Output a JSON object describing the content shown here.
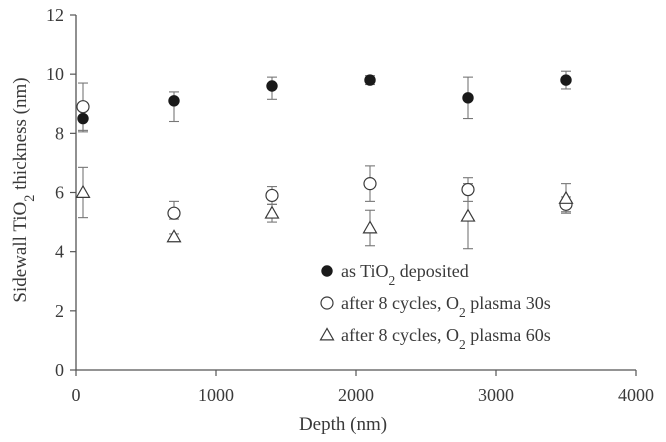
{
  "chart_data": {
    "type": "scatter",
    "title": "",
    "xlabel": "Depth (nm)",
    "ylabel_parts": [
      "Sidewall  TiO",
      "2",
      " thickness (nm)"
    ],
    "xlim": [
      0,
      4000
    ],
    "ylim": [
      0,
      12
    ],
    "x_ticks": [
      0,
      1000,
      2000,
      3000,
      4000
    ],
    "y_ticks": [
      0,
      2,
      4,
      6,
      8,
      10,
      12
    ],
    "grid": false,
    "legend_position": "bottom-right",
    "colors": {
      "axis": "#555555",
      "ink": "#3a3a3a",
      "filled": "#1a1a1a",
      "open": "#ffffff",
      "errorbar": "#777777"
    },
    "series": [
      {
        "name_parts": [
          "as TiO",
          "2",
          " deposited"
        ],
        "marker": "filled-circle",
        "points": [
          {
            "x": 50,
            "y": 8.5,
            "err_lo": 0.45,
            "err_hi": 0.45
          },
          {
            "x": 700,
            "y": 9.1,
            "err_lo": 0.7,
            "err_hi": 0.3
          },
          {
            "x": 1400,
            "y": 9.6,
            "err_lo": 0.45,
            "err_hi": 0.3
          },
          {
            "x": 2100,
            "y": 9.8,
            "err_lo": 0.15,
            "err_hi": 0.15
          },
          {
            "x": 2800,
            "y": 9.2,
            "err_lo": 0.7,
            "err_hi": 0.7
          },
          {
            "x": 3500,
            "y": 9.8,
            "err_lo": 0.3,
            "err_hi": 0.3
          }
        ]
      },
      {
        "name_parts": [
          "after 8 cycles, O",
          "2",
          "  plasma 30s"
        ],
        "marker": "open-circle",
        "points": [
          {
            "x": 50,
            "y": 8.9,
            "err_lo": 0.8,
            "err_hi": 0.8
          },
          {
            "x": 700,
            "y": 5.3,
            "err_lo": 0.2,
            "err_hi": 0.4
          },
          {
            "x": 1400,
            "y": 5.9,
            "err_lo": 0.3,
            "err_hi": 0.3
          },
          {
            "x": 2100,
            "y": 6.3,
            "err_lo": 0.6,
            "err_hi": 0.6
          },
          {
            "x": 2800,
            "y": 6.1,
            "err_lo": 0.4,
            "err_hi": 0.4
          },
          {
            "x": 3500,
            "y": 5.6,
            "err_lo": 0.25,
            "err_hi": 0.25
          }
        ]
      },
      {
        "name_parts": [
          "after 8 cycles, O",
          "2",
          "  plasma 60s"
        ],
        "marker": "open-triangle",
        "points": [
          {
            "x": 50,
            "y": 6.0,
            "err_lo": 0.85,
            "err_hi": 0.85
          },
          {
            "x": 700,
            "y": 4.5,
            "err_lo": 0.1,
            "err_hi": 0.1
          },
          {
            "x": 1400,
            "y": 5.3,
            "err_lo": 0.3,
            "err_hi": 0.3
          },
          {
            "x": 2100,
            "y": 4.8,
            "err_lo": 0.6,
            "err_hi": 0.6
          },
          {
            "x": 2800,
            "y": 5.2,
            "err_lo": 1.1,
            "err_hi": 1.1
          },
          {
            "x": 3500,
            "y": 5.8,
            "err_lo": 0.5,
            "err_hi": 0.5
          }
        ]
      }
    ]
  }
}
